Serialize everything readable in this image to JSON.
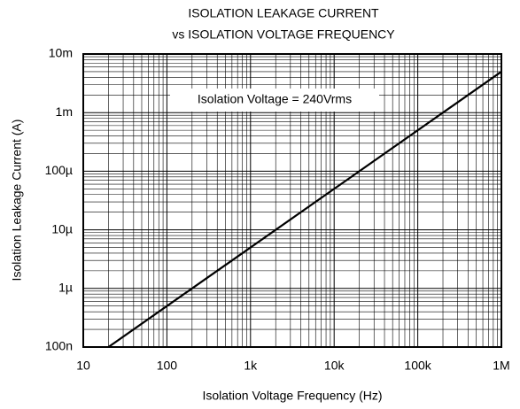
{
  "chart_data": {
    "type": "line",
    "title": [
      "ISOLATION LEAKAGE CURRENT",
      "vs ISOLATION VOLTAGE FREQUENCY"
    ],
    "x_label": "Isolation Voltage Frequency (Hz)",
    "y_label": "Isolation Leakage Current (A)",
    "annotation": "Isolation Voltage = 240Vrms",
    "x_log": true,
    "y_log": true,
    "grid": true,
    "minor_grid": true,
    "xlim": [
      10,
      1000000
    ],
    "ylim": [
      1e-07,
      0.01
    ],
    "xticks": [
      10,
      100,
      {
        "value": 1000,
        "label": "1k"
      },
      {
        "value": 10000,
        "label": "10k"
      },
      {
        "value": 100000,
        "label": "100k"
      },
      {
        "value": 1000000,
        "label": "1M"
      }
    ],
    "yticks": [
      {
        "value": 1e-07,
        "label": "100n"
      },
      {
        "value": 1e-06,
        "label": "1µ"
      },
      {
        "value": 1e-05,
        "label": "10µ"
      },
      {
        "value": 0.0001,
        "label": "100µ"
      },
      {
        "value": 0.001,
        "label": "1m"
      },
      {
        "value": 0.01,
        "label": "10m"
      }
    ],
    "series": [
      {
        "color": "#000000",
        "x": [
          20,
          1000000
        ],
        "values": [
          1e-07,
          0.005
        ]
      }
    ]
  }
}
